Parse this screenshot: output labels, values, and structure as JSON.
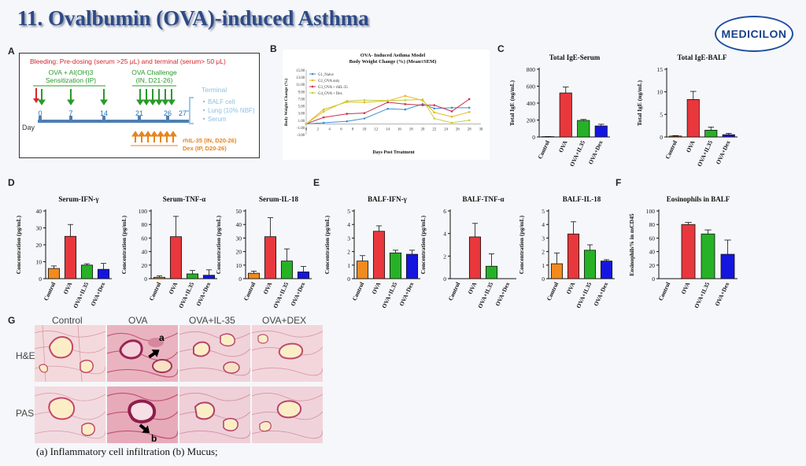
{
  "page": {
    "title": "11. Ovalbumin (OVA)-induced Asthma",
    "logo_text": "MEDICILON",
    "colors": {
      "title": "#2e4a86",
      "control": "#f28a1e",
      "ova": "#e8383d",
      "il35": "#27b127",
      "dex": "#1515e0"
    }
  },
  "panels": {
    "A": "A",
    "B": "B",
    "C": "C",
    "D": "D",
    "E": "E",
    "F": "F",
    "G": "G"
  },
  "schematic": {
    "bleeding": "Bleeding: Pre-dosing (serum >25 μL) and terminal (serum> 50 μL)",
    "sensitization_1": "OVA + Al(OH)3",
    "sensitization_2": "Sensitization (IP)",
    "challenge_1": "OVA Challenge",
    "challenge_2": "(IN, D21-26)",
    "terminal_title": "Terminal",
    "terminal_items": [
      "BALF cell",
      "Lung (10% NBF)",
      "Serum"
    ],
    "day_label": "Day",
    "days": [
      "0",
      "7",
      "14",
      "21",
      "26",
      "27"
    ],
    "treat_1": "rhIL-35 (IN, D20-26)",
    "treat_2": "Dex (IP, D20-26)"
  },
  "chart_data": [
    {
      "id": "B",
      "type": "line",
      "title": "OVA- Induced Asthma Model",
      "subtitle": "Body Weight Change (%) (Mean±SEM)",
      "xlabel": "Days Post Treatment",
      "ylabel": "Body Weight Change (%)",
      "xlim": [
        0,
        30
      ],
      "ylim": [
        -3,
        15
      ],
      "xticks": [
        0,
        2,
        4,
        6,
        8,
        10,
        12,
        14,
        16,
        18,
        20,
        22,
        24,
        26,
        28,
        30
      ],
      "yticks": [
        -3,
        -1,
        1,
        3,
        5,
        7,
        9,
        11,
        13,
        15
      ],
      "ytick_labels": [
        "-3.00",
        "-1.00",
        "1.00",
        "3.00",
        "5.00",
        "7.00",
        "9.00",
        "11.00",
        "13.00",
        "15.00"
      ],
      "x": [
        0,
        3,
        7,
        10,
        14,
        17,
        20,
        22,
        25,
        28
      ],
      "series": [
        {
          "name": "G1_Naive",
          "color": "#3c8fd6",
          "values": [
            0,
            0.3,
            0.7,
            1.5,
            4.2,
            4.0,
            5.5,
            4.3,
            4.5,
            4.5
          ]
        },
        {
          "name": "G2_OVA only",
          "color": "#e6b81c",
          "values": [
            0,
            4.0,
            6.1,
            6.0,
            6.4,
            7.8,
            6.5,
            3.2,
            2.0,
            3.3
          ]
        },
        {
          "name": "G3_OVA + rhIL-35",
          "color": "#c9324a",
          "values": [
            0,
            1.8,
            2.8,
            3.0,
            6.0,
            5.5,
            5.2,
            5.2,
            3.5,
            6.9
          ]
        },
        {
          "name": "G4_OVA + Dex",
          "color": "#c8cc45",
          "values": [
            0,
            3.4,
            6.4,
            6.6,
            6.5,
            6.6,
            6.8,
            1.5,
            0.3,
            1.0
          ]
        }
      ]
    },
    {
      "id": "C1",
      "type": "bar",
      "title": "Total IgE-Serum",
      "ylabel": "Total IgE (ng/mL)",
      "categories": [
        "Control",
        "OVA",
        "OVA+IL35",
        "OVA+Dex"
      ],
      "values": [
        4,
        520,
        195,
        130
      ],
      "errors": [
        2,
        70,
        12,
        20
      ],
      "ylim": [
        0,
        800
      ],
      "yticks": [
        0,
        200,
        400,
        600,
        800
      ]
    },
    {
      "id": "C2",
      "type": "bar",
      "title": "Total IgE-BALF",
      "ylabel": "Total IgE (ng/mL)",
      "categories": [
        "Control",
        "OVA",
        "OVA+IL35",
        "OVA+Dex"
      ],
      "values": [
        0.2,
        8.3,
        1.5,
        0.5
      ],
      "errors": [
        0.1,
        1.8,
        0.7,
        0.3
      ],
      "ylim": [
        0,
        15
      ],
      "yticks": [
        0,
        5,
        10,
        15
      ]
    },
    {
      "id": "D1",
      "type": "bar",
      "title": "Serum-IFN-γ",
      "ylabel": "Concentration (pg/mL)",
      "categories": [
        "Control",
        "OVA",
        "OVA+IL35",
        "OVA+Dex"
      ],
      "values": [
        6,
        25,
        8,
        5.5
      ],
      "errors": [
        1.5,
        7,
        0.8,
        3.5
      ],
      "ylim": [
        0,
        40
      ],
      "yticks": [
        0,
        10,
        20,
        30,
        40
      ]
    },
    {
      "id": "D2",
      "type": "bar",
      "title": "Serum-TNF-α",
      "ylabel": "Concentration (pg/mL)",
      "categories": [
        "Control",
        "OVA",
        "OVA+IL35",
        "OVA+Dex"
      ],
      "values": [
        2,
        62,
        7,
        5
      ],
      "errors": [
        2,
        30,
        5,
        8
      ],
      "ylim": [
        0,
        100
      ],
      "yticks": [
        0,
        20,
        40,
        60,
        80,
        100
      ]
    },
    {
      "id": "D3",
      "type": "bar",
      "title": "Serum-IL-18",
      "ylabel": "Concentration (pg/mL)",
      "categories": [
        "Control",
        "OVA",
        "OVA+IL35",
        "OVA+Dex"
      ],
      "values": [
        4,
        31,
        13,
        5
      ],
      "errors": [
        1.5,
        14,
        9,
        4
      ],
      "ylim": [
        0,
        50
      ],
      "yticks": [
        0,
        10,
        20,
        30,
        40,
        50
      ]
    },
    {
      "id": "E1",
      "type": "bar",
      "title": "BALF-IFN-γ",
      "ylabel": "Concentration (pg/mL)",
      "categories": [
        "Control",
        "OVA",
        "OVA+IL35",
        "OVA+Dex"
      ],
      "values": [
        1.3,
        3.5,
        1.9,
        1.8
      ],
      "errors": [
        0.4,
        0.4,
        0.2,
        0.3
      ],
      "ylim": [
        0,
        5
      ],
      "yticks": [
        0,
        1,
        2,
        3,
        4,
        5
      ]
    },
    {
      "id": "E2",
      "type": "bar",
      "title": "BALF-TNF-α",
      "ylabel": "Concentration (pg/mL)",
      "categories": [
        "Control",
        "OVA",
        "OVA+IL35",
        "OVA+Dex"
      ],
      "values": [
        0,
        3.7,
        1.1,
        0
      ],
      "errors": [
        0,
        1.2,
        1.1,
        0
      ],
      "ylim": [
        0,
        6
      ],
      "yticks": [
        0,
        2,
        4,
        6
      ]
    },
    {
      "id": "E3",
      "type": "bar",
      "title": "BALF-IL-18",
      "ylabel": "Concentration (pg/mL)",
      "categories": [
        "Control",
        "OVA",
        "OVA+IL35",
        "OVA+Dex"
      ],
      "values": [
        1.1,
        3.3,
        2.1,
        1.3
      ],
      "errors": [
        0.8,
        0.9,
        0.4,
        0.1
      ],
      "ylim": [
        0,
        5
      ],
      "yticks": [
        0,
        1,
        2,
        3,
        4,
        5
      ]
    },
    {
      "id": "F1",
      "type": "bar",
      "title": "Eosinophils in BALF",
      "ylabel": "Eosinophils% in mCD45",
      "categories": [
        "Control",
        "OVA",
        "OVA+IL35",
        "OVA+Dex"
      ],
      "values": [
        0,
        80,
        66,
        36
      ],
      "errors": [
        0,
        3,
        6,
        21
      ],
      "ylim": [
        0,
        100
      ],
      "yticks": [
        0,
        20,
        40,
        60,
        80,
        100
      ]
    }
  ],
  "histology": {
    "columns": [
      "Control",
      "OVA",
      "OVA+IL-35",
      "OVA+DEX"
    ],
    "rows": [
      "H&E",
      "PAS"
    ],
    "marker_a": "a",
    "marker_b": "b",
    "caption": "(a) Inflammatory cell infiltration  (b) Mucus;"
  }
}
